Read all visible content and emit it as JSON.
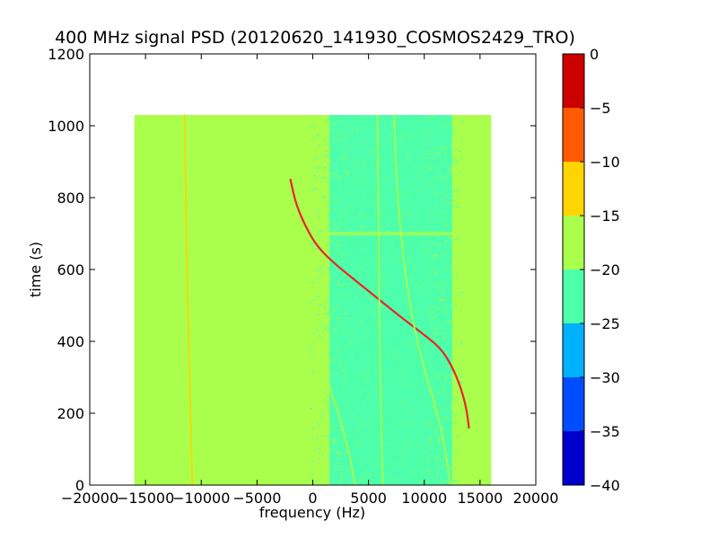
{
  "chart_data": {
    "type": "heatmap",
    "title": "400 MHz signal PSD (20120620_141930_COSMOS2429_TRO)",
    "xlabel": "frequency (Hz)",
    "ylabel": "time (s)",
    "xlim": [
      -20000,
      20000
    ],
    "ylim": [
      0,
      1200
    ],
    "x_ticks": [
      -20000,
      -15000,
      -10000,
      -5000,
      0,
      5000,
      10000,
      15000,
      20000
    ],
    "y_ticks": [
      0,
      200,
      400,
      600,
      800,
      1000,
      1200
    ],
    "data_extent": {
      "x": [
        -16000,
        16000
      ],
      "y": [
        0,
        1030
      ]
    },
    "background_level": {
      "range": [
        -20,
        -15
      ],
      "color": "#aaff4d"
    },
    "noise_band": {
      "x": [
        1500,
        12500
      ],
      "range": [
        -25,
        -20
      ],
      "color": "#4dffaa"
    },
    "grid": false,
    "colorbar": {
      "range": [
        -40,
        0
      ],
      "ticks": [
        0,
        -5,
        -10,
        -15,
        -20,
        -25,
        -30,
        -35,
        -40
      ],
      "levels": [
        {
          "from": -40,
          "to": -35,
          "color": "#0000cd"
        },
        {
          "from": -35,
          "to": -30,
          "color": "#004dff"
        },
        {
          "from": -30,
          "to": -25,
          "color": "#00b1ff"
        },
        {
          "from": -25,
          "to": -20,
          "color": "#4dffaa"
        },
        {
          "from": -20,
          "to": -15,
          "color": "#aaff4d"
        },
        {
          "from": -15,
          "to": -10,
          "color": "#ffd400"
        },
        {
          "from": -10,
          "to": -5,
          "color": "#ff5a00"
        },
        {
          "from": -5,
          "to": 0,
          "color": "#cd0000"
        }
      ]
    },
    "traces": [
      {
        "name": "doppler-curve",
        "color": "#e8262a",
        "level": [
          -5,
          0
        ],
        "points": [
          [
            -2000,
            850
          ],
          [
            -1500,
            780
          ],
          [
            -500,
            710
          ],
          [
            500,
            660
          ],
          [
            2000,
            615
          ],
          [
            4000,
            565
          ],
          [
            6000,
            515
          ],
          [
            8000,
            465
          ],
          [
            10000,
            418
          ],
          [
            11500,
            380
          ],
          [
            12500,
            330
          ],
          [
            13300,
            270
          ],
          [
            13800,
            210
          ],
          [
            14000,
            160
          ]
        ]
      },
      {
        "name": "vertical-line-left",
        "color": "#ffd400",
        "level": [
          -15,
          -10
        ],
        "points": [
          [
            -11500,
            1030
          ],
          [
            -11300,
            600
          ],
          [
            -11000,
            250
          ],
          [
            -10800,
            0
          ]
        ]
      },
      {
        "name": "vertical-line-center",
        "color": "#aaff4d",
        "level": [
          -20,
          -15
        ],
        "points": [
          [
            5800,
            1030
          ],
          [
            5900,
            700
          ],
          [
            6000,
            400
          ],
          [
            6100,
            200
          ],
          [
            6300,
            0
          ]
        ]
      },
      {
        "name": "curved-line-right",
        "color": "#aaff4d",
        "level": [
          -20,
          -15
        ],
        "points": [
          [
            7300,
            1030
          ],
          [
            7500,
            850
          ],
          [
            7900,
            700
          ],
          [
            8400,
            560
          ],
          [
            9200,
            420
          ],
          [
            10200,
            300
          ],
          [
            11200,
            200
          ],
          [
            12000,
            80
          ],
          [
            12300,
            0
          ]
        ]
      },
      {
        "name": "faint-curve-lower",
        "color": "#aaff4d",
        "level": [
          -20,
          -15
        ],
        "points": [
          [
            0,
            500
          ],
          [
            300,
            400
          ],
          [
            1200,
            300
          ],
          [
            2300,
            200
          ],
          [
            3200,
            100
          ],
          [
            3800,
            0
          ]
        ]
      }
    ],
    "horizontal_band": {
      "y": 700,
      "level": [
        -20,
        -15
      ],
      "color": "#aaff4d"
    }
  }
}
